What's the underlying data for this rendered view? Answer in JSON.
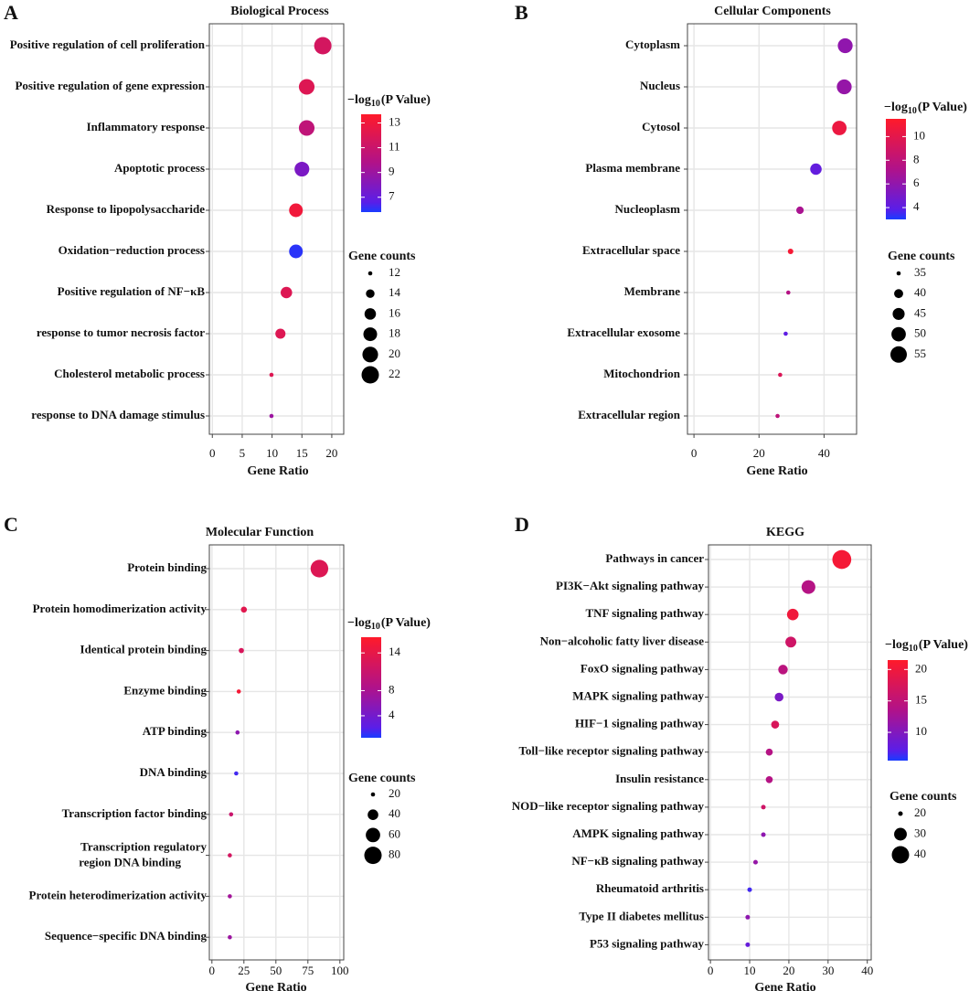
{
  "chart_data": [
    {
      "type": "scatter",
      "panel_label": "A",
      "title": "Biological Process",
      "xlabel": "Gene Ratio",
      "xticks": [
        0,
        5,
        10,
        15,
        20
      ],
      "xlim": [
        -0.5,
        22
      ],
      "categories": [
        "Positive regulation of cell proliferation",
        "Positive regulation of gene expression",
        "Inflammatory response",
        "Apoptotic process",
        "Response to lipopolysaccharide",
        "Oxidation−reduction process",
        "Positive regulation of NF−κB",
        "response to tumor necrosis factor",
        "Cholesterol metabolic process",
        "response to DNA damage stimulus"
      ],
      "gene_ratio": [
        18.5,
        15.8,
        15.8,
        15.0,
        14.0,
        14.0,
        12.4,
        11.4,
        9.9,
        9.9
      ],
      "gene_counts": [
        22,
        20,
        20,
        19,
        18,
        18,
        16,
        15,
        11,
        11
      ],
      "neg_log10_p": [
        11.5,
        12.0,
        10.5,
        7.8,
        13.0,
        6.0,
        12.0,
        12.0,
        12.0,
        9.0
      ],
      "color_legend": {
        "title": "−log",
        "title_sub": "10",
        "title_suffix": "(P Value)",
        "range": [
          5.8,
          13.7
        ],
        "ticks": [
          13,
          11,
          9,
          7
        ]
      },
      "size_legend": {
        "title": "Gene counts",
        "values": [
          12,
          14,
          16,
          18,
          20,
          22
        ]
      }
    },
    {
      "type": "scatter",
      "panel_label": "B",
      "title": "Cellular Components",
      "xlabel": "Gene Ratio",
      "xticks": [
        0,
        20,
        40
      ],
      "xlim": [
        -2,
        50
      ],
      "categories": [
        "Cytoplasm",
        "Nucleus",
        "Cytosol",
        "Plasma membrane",
        "Nucleoplasm",
        "Extracellular space",
        "Membrane",
        "Extracellular exosome",
        "Mitochondrion",
        "Extracellular region"
      ],
      "gene_ratio": [
        46.5,
        46.2,
        44.7,
        37.5,
        32.6,
        29.7,
        29.0,
        28.2,
        26.5,
        25.7
      ],
      "gene_counts": [
        51,
        51,
        50,
        44,
        38,
        36,
        35,
        34,
        32,
        30
      ],
      "neg_log10_p": [
        6.0,
        6.2,
        10.5,
        4.2,
        7.0,
        11.0,
        7.5,
        4.0,
        9.5,
        8.0
      ],
      "color_legend": {
        "title": "−log",
        "title_sub": "10",
        "title_suffix": "(P Value)",
        "range": [
          3.0,
          11.5
        ],
        "ticks": [
          10,
          8,
          6,
          4
        ]
      },
      "size_legend": {
        "title": "Gene counts",
        "values": [
          35,
          40,
          45,
          50,
          55
        ]
      }
    },
    {
      "type": "scatter",
      "panel_label": "C",
      "title": "Molecular Function",
      "xlabel": "Gene Ratio",
      "xticks": [
        0,
        25,
        50,
        75,
        100
      ],
      "xlim": [
        -2,
        103
      ],
      "categories": [
        "Protein binding",
        "Protein homodimerization activity",
        "Identical protein binding",
        "Enzyme binding",
        "ATP binding",
        "DNA binding",
        "Transcription factor binding",
        "Transcription regulatory\nregion DNA binding",
        "Protein heterodimerization activity",
        "Sequence−specific DNA binding"
      ],
      "gene_ratio": [
        84,
        25,
        23,
        21,
        20,
        19,
        15,
        14,
        14,
        14
      ],
      "gene_counts": [
        82,
        24,
        22,
        20,
        18,
        18,
        14,
        12,
        12,
        12
      ],
      "neg_log10_p": [
        13.0,
        13.5,
        12.5,
        15.5,
        6.0,
        1.5,
        11.0,
        12.0,
        7.5,
        7.0
      ],
      "color_legend": {
        "title": "−log",
        "title_sub": "10",
        "title_suffix": "(P Value)",
        "range": [
          0.5,
          16.5
        ],
        "ticks": [
          14,
          8,
          4
        ]
      },
      "size_legend": {
        "title": "Gene counts",
        "values": [
          20,
          40,
          60,
          80
        ]
      }
    },
    {
      "type": "scatter",
      "panel_label": "D",
      "title": "KEGG",
      "xlabel": "Gene Ratio",
      "xticks": [
        0,
        10,
        20,
        30,
        40
      ],
      "xlim": [
        -0.5,
        41
      ],
      "categories": [
        "Pathways in cancer",
        "PI3K−Akt signaling pathway",
        "TNF signaling pathway",
        "Non−alcoholic fatty liver disease",
        "FoxO signaling pathway",
        "MAPK signaling pathway",
        "HIF−1 signaling pathway",
        "Toll−like receptor signaling pathway",
        "Insulin resistance",
        "NOD−like receptor signaling pathway",
        "AMPK signaling pathway",
        "NF−κB signaling pathway",
        "Rheumatoid arthritis",
        "Type II diabetes mellitus",
        "P53 signaling pathway"
      ],
      "gene_ratio": [
        33.5,
        25.0,
        21.0,
        20.5,
        18.5,
        17.5,
        16.5,
        15.0,
        15.0,
        13.5,
        13.5,
        11.5,
        10.0,
        9.5,
        9.5
      ],
      "gene_counts": [
        44,
        32,
        28,
        27,
        25,
        24,
        23,
        22,
        22,
        20,
        20,
        18,
        14,
        12,
        12
      ],
      "neg_log10_p": [
        20.5,
        14.0,
        20.0,
        16.5,
        14.5,
        9.5,
        17.5,
        14.0,
        14.0,
        16.5,
        11.0,
        11.5,
        6.5,
        11.0,
        8.0
      ],
      "color_legend": {
        "title": "−log",
        "title_sub": "10",
        "title_suffix": "(P Value)",
        "range": [
          5.5,
          21.5
        ],
        "ticks": [
          20,
          15,
          10
        ]
      },
      "size_legend": {
        "title": "Gene counts",
        "values": [
          20,
          30,
          40
        ]
      }
    }
  ]
}
